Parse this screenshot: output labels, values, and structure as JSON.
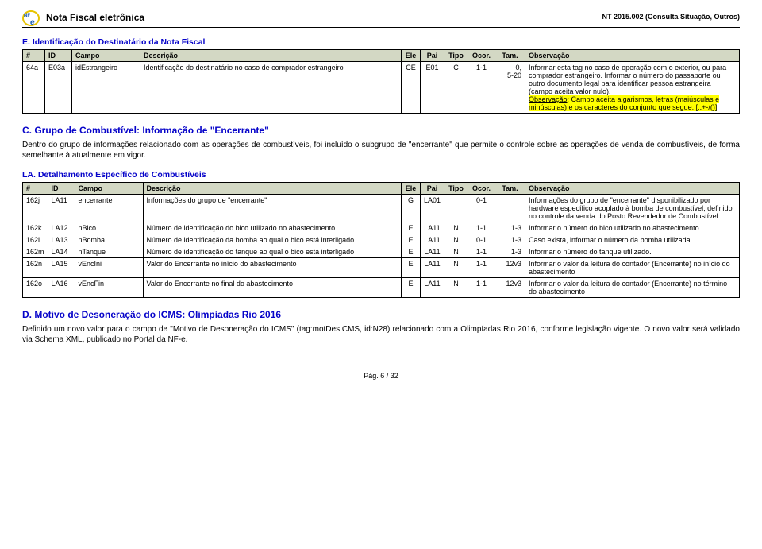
{
  "header": {
    "doc_title": "Nota Fiscal eletrônica",
    "doc_code": "NT 2015.002 (Consulta Situação, Outros)"
  },
  "section_e": {
    "title": "E. Identificação do Destinatário da Nota Fiscal",
    "columns": [
      "#",
      "ID",
      "Campo",
      "Descrição",
      "Ele",
      "Pai",
      "Tipo",
      "Ocor.",
      "Tam.",
      "Observação"
    ],
    "row": {
      "n": "64a",
      "id": "E03a",
      "campo": "idEstrangeiro",
      "desc": "Identificação do destinatário no caso de comprador estrangeiro",
      "ele": "CE",
      "pai": "E01",
      "tipo": "C",
      "ocor": "1-1",
      "tam": "0,\n5-20",
      "obs_plain": "Informar esta tag no caso de operação com o exterior, ou para comprador estrangeiro. Informar o número do passaporte ou outro documento legal para identificar pessoa estrangeira (campo aceita valor nulo).",
      "obs_hl_1": "Observação",
      "obs_hl_2": ": Campo aceita algarismos, letras (maiúsculas e minúsculas) e os caracteres do conjunto que segue: [:.+-/()]"
    }
  },
  "section_c": {
    "title": "C. Grupo de Combustível: Informação de \"Encerrante\"",
    "para": "Dentro do grupo de informações relacionado com as operações de combustíveis, foi incluído o subgrupo de \"encerrante\" que permite o controle sobre as operações de venda de combustíveis, de forma semelhante à atualmente em vigor."
  },
  "section_la": {
    "title": "LA. Detalhamento Específico de Combustíveis",
    "columns": [
      "#",
      "ID",
      "Campo",
      "Descrição",
      "Ele",
      "Pai",
      "Tipo",
      "Ocor.",
      "Tam.",
      "Observação"
    ],
    "rows": [
      {
        "n": "162j",
        "id": "LA11",
        "campo": "encerrante",
        "desc": "Informações do grupo de \"encerrante\"",
        "ele": "G",
        "pai": "LA01",
        "tipo": "",
        "ocor": "0-1",
        "tam": "",
        "obs": "Informações do grupo de \"encerrante\" disponibilizado por hardware específico acoplado à bomba de combustível, definido no controle da venda do Posto Revendedor de Combustível."
      },
      {
        "n": "162k",
        "id": "LA12",
        "campo": "nBico",
        "desc": "Número de identificação do bico utilizado no abastecimento",
        "ele": "E",
        "pai": "LA11",
        "tipo": "N",
        "ocor": "1-1",
        "tam": "1-3",
        "obs": "Informar o número do bico utilizado no abastecimento."
      },
      {
        "n": "162l",
        "id": "LA13",
        "campo": "nBomba",
        "desc": "Número de identificação da bomba ao qual o bico está interligado",
        "ele": "E",
        "pai": "LA11",
        "tipo": "N",
        "ocor": "0-1",
        "tam": "1-3",
        "obs": "Caso exista, informar o número da bomba utilizada."
      },
      {
        "n": "162m",
        "id": "LA14",
        "campo": "nTanque",
        "desc": "Número de identificação do tanque ao qual o bico está interligado",
        "ele": "E",
        "pai": "LA11",
        "tipo": "N",
        "ocor": "1-1",
        "tam": "1-3",
        "obs": "Informar o número do tanque utilizado."
      },
      {
        "n": "162n",
        "id": "LA15",
        "campo": "vEncIni",
        "desc": "Valor do Encerrante no início do abastecimento",
        "ele": "E",
        "pai": "LA11",
        "tipo": "N",
        "ocor": "1-1",
        "tam": "12v3",
        "obs": "Informar o valor da leitura do contador (Encerrante) no início do abastecimento"
      },
      {
        "n": "162o",
        "id": "LA16",
        "campo": "vEncFin",
        "desc": "Valor do Encerrante no final do abastecimento",
        "ele": "E",
        "pai": "LA11",
        "tipo": "N",
        "ocor": "1-1",
        "tam": "12v3",
        "obs": "Informar o valor da leitura do contador (Encerrante) no término do abastecimento"
      }
    ]
  },
  "section_d": {
    "title": "D. Motivo de Desoneração do ICMS: Olimpíadas Rio 2016",
    "para": "Definido um novo valor para o campo de \"Motivo de Desoneração do ICMS\" (tag:motDesICMS, id:N28) relacionado com a Olimpíadas Rio 2016, conforme legislação vigente. O novo valor será validado via Schema XML, publicado no Portal da NF-e."
  },
  "footer": {
    "page": "Pág. 6 / 32"
  }
}
